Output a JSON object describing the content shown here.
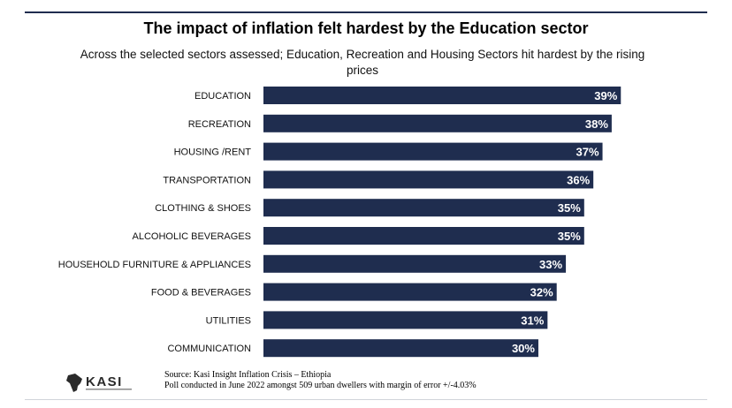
{
  "chart_data": {
    "type": "bar",
    "orientation": "horizontal",
    "title": "The impact of inflation felt hardest by the Education sector",
    "subtitle": "Across the selected sectors assessed; Education, Recreation and Housing Sectors hit hardest by the rising prices",
    "categories": [
      "EDUCATION",
      "RECREATION",
      "HOUSING /RENT",
      "TRANSPORTATION",
      "CLOTHING & SHOES",
      "ALCOHOLIC BEVERAGES",
      "HOUSEHOLD FURNITURE & APPLIANCES",
      "FOOD & BEVERAGES",
      "UTILITIES",
      "COMMUNICATION"
    ],
    "values": [
      39,
      38,
      37,
      36,
      35,
      35,
      33,
      32,
      31,
      30
    ],
    "value_labels": [
      "39%",
      "38%",
      "37%",
      "36%",
      "35%",
      "35%",
      "33%",
      "32%",
      "31%",
      "30%"
    ],
    "unit": "%",
    "xlim": [
      0,
      41
    ],
    "grid": false,
    "legend": "none",
    "bar_color": "#1f2d4f"
  },
  "footer": {
    "logo_text": "KASI",
    "source_line": "Source: Kasi Insight Inflation Crisis – Ethiopia",
    "poll_line": "Poll conducted in June 2022 amongst 509 urban dwellers with margin of error +/-4.03%"
  }
}
